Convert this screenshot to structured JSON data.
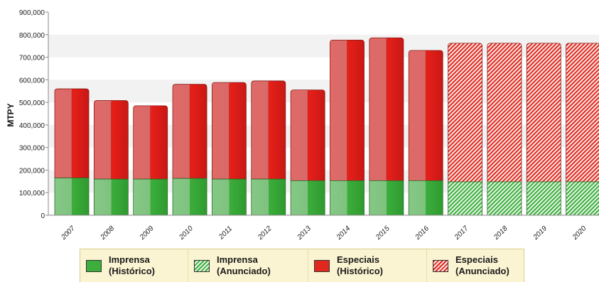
{
  "chart_data": {
    "type": "bar",
    "stacked": true,
    "ylabel": "MTPY",
    "xlabel": "",
    "ylim": [
      0,
      900000
    ],
    "yticks": [
      "0",
      "100,000",
      "200,000",
      "300,000",
      "400,000",
      "500,000",
      "600,000",
      "700,000",
      "800,000",
      "900,000"
    ],
    "categories": [
      "2007",
      "2008",
      "2009",
      "2010",
      "2011",
      "2012",
      "2013",
      "2014",
      "2015",
      "2016",
      "2017",
      "2018",
      "2019",
      "2020"
    ],
    "series": [
      {
        "name": "Imprensa (Histórico)",
        "values": [
          165000,
          160000,
          160000,
          163000,
          160000,
          160000,
          153000,
          153000,
          153000,
          153000,
          null,
          null,
          null,
          null
        ]
      },
      {
        "name": "Imprensa (Anunciado)",
        "values": [
          null,
          null,
          null,
          null,
          null,
          null,
          null,
          null,
          null,
          null,
          148000,
          148000,
          148000,
          148000
        ]
      },
      {
        "name": "Especiais (Histórico)",
        "values": [
          395000,
          348000,
          325000,
          417000,
          428000,
          435000,
          402000,
          623000,
          633000,
          577000,
          null,
          null,
          null,
          null
        ]
      },
      {
        "name": "Especiais (Anunciado)",
        "values": [
          null,
          null,
          null,
          null,
          null,
          null,
          null,
          null,
          null,
          null,
          614000,
          614000,
          614000,
          614000
        ]
      }
    ],
    "grid": true,
    "legend_position": "bottom",
    "colors": {
      "imprensa": "#3cae3c",
      "especiais": "#e0281e"
    }
  },
  "legend": [
    {
      "label": "Imprensa\n(Histórico)",
      "style": "green"
    },
    {
      "label": "Imprensa\n(Anunciado)",
      "style": "green-hatch"
    },
    {
      "label": "Especiais\n(Histórico)",
      "style": "red"
    },
    {
      "label": "Especiais\n(Anunciado)",
      "style": "red-hatch"
    }
  ]
}
